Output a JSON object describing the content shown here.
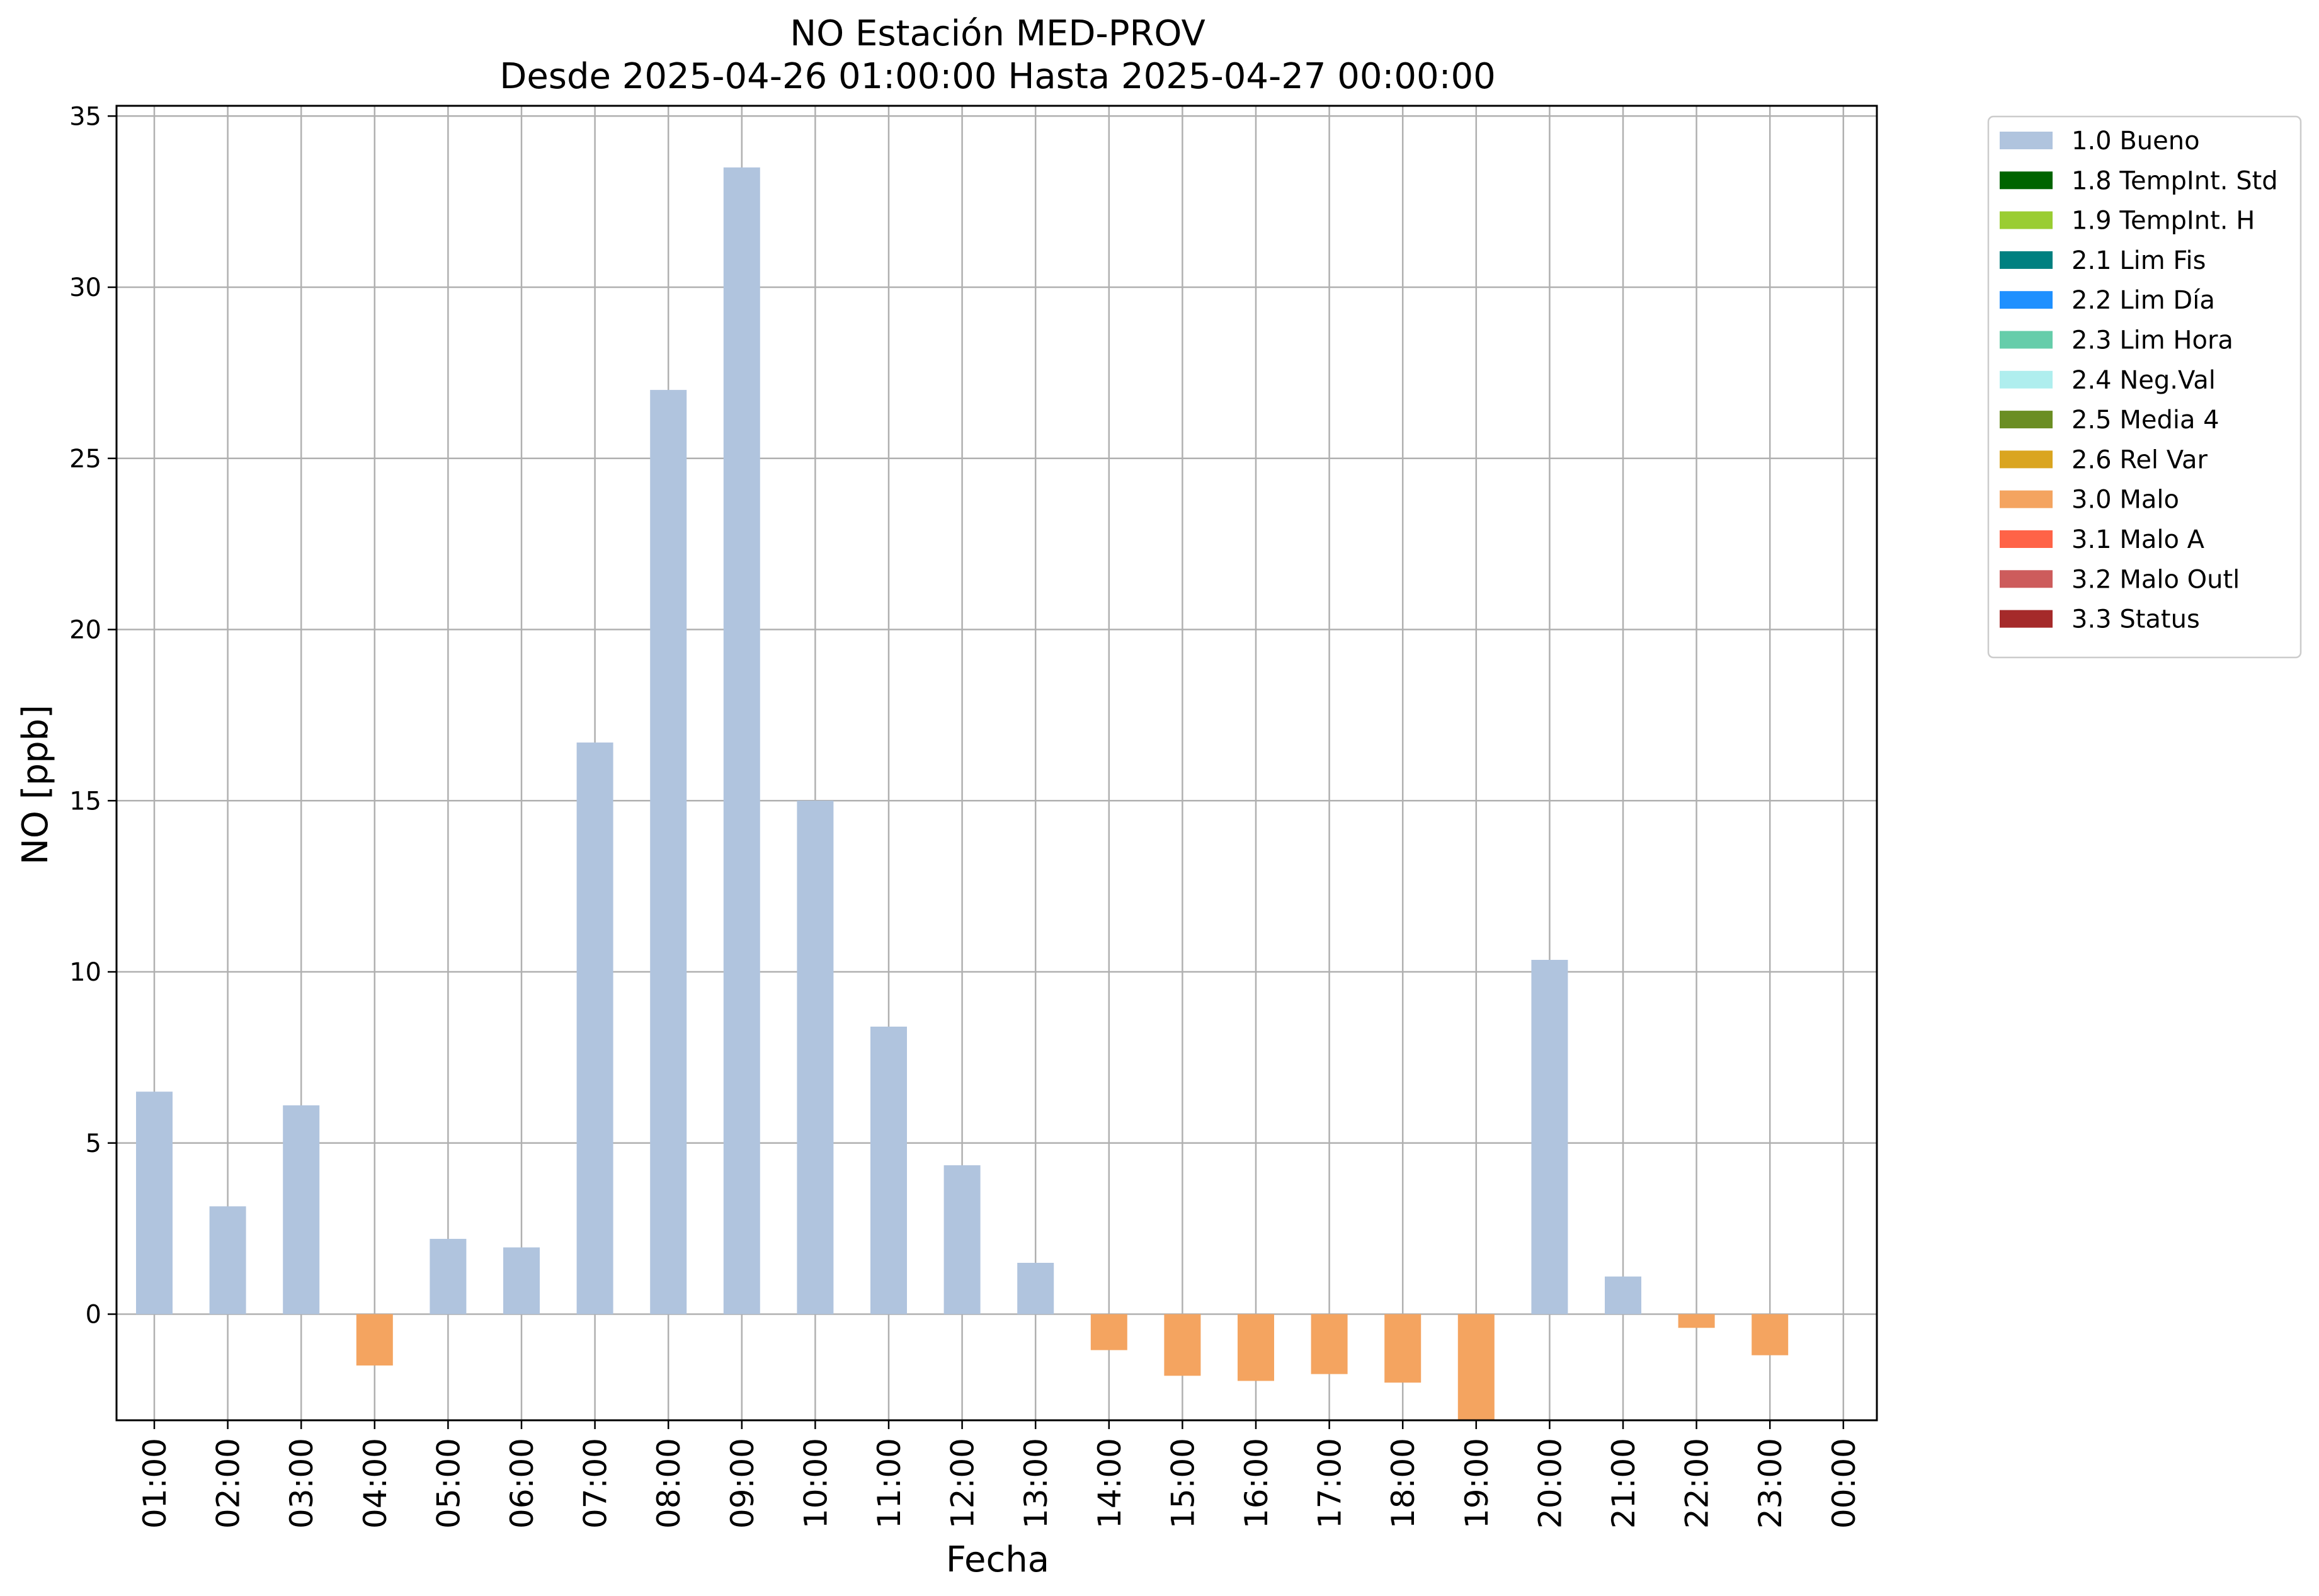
{
  "chart_data": {
    "type": "bar",
    "title": "NO Estación MED-PROV",
    "subtitle": "Desde 2025-04-26 01:00:00 Hasta 2025-04-27 00:00:00",
    "xlabel": "Fecha",
    "ylabel": "NO [ppb]",
    "ylim": [
      -3.1,
      35.3
    ],
    "yticks": [
      0,
      5,
      10,
      15,
      20,
      25,
      30,
      35
    ],
    "grid": true,
    "legend_position": "outside-top-right",
    "categories": [
      "01:00",
      "02:00",
      "03:00",
      "04:00",
      "05:00",
      "06:00",
      "07:00",
      "08:00",
      "09:00",
      "10:00",
      "11:00",
      "12:00",
      "13:00",
      "14:00",
      "15:00",
      "16:00",
      "17:00",
      "18:00",
      "19:00",
      "20:00",
      "21:00",
      "22:00",
      "23:00",
      "00:00"
    ],
    "values": [
      6.5,
      3.15,
      6.1,
      -1.5,
      2.2,
      1.95,
      16.7,
      27.0,
      33.5,
      15.0,
      8.4,
      4.35,
      1.5,
      -1.05,
      -1.8,
      -1.95,
      -1.75,
      -2.0,
      -3.1,
      10.35,
      1.1,
      -0.4,
      -1.2,
      null
    ],
    "flags": [
      "1.0 Bueno",
      "1.0 Bueno",
      "1.0 Bueno",
      "3.0 Malo",
      "1.0 Bueno",
      "1.0 Bueno",
      "1.0 Bueno",
      "1.0 Bueno",
      "1.0 Bueno",
      "1.0 Bueno",
      "1.0 Bueno",
      "1.0 Bueno",
      "1.0 Bueno",
      "3.0 Malo",
      "3.0 Malo",
      "3.0 Malo",
      "3.0 Malo",
      "3.0 Malo",
      "3.0 Malo",
      "1.0 Bueno",
      "1.0 Bueno",
      "3.0 Malo",
      "3.0 Malo",
      null
    ],
    "legend": [
      {
        "label": "1.0 Bueno",
        "color": "#b0c4de"
      },
      {
        "label": "1.8 TempInt. Std",
        "color": "#006400"
      },
      {
        "label": "1.9 TempInt. H",
        "color": "#9acd32"
      },
      {
        "label": "2.1 Lim Fis",
        "color": "#008080"
      },
      {
        "label": "2.2 Lim Día",
        "color": "#1e90ff"
      },
      {
        "label": "2.3 Lim Hora",
        "color": "#66cdaa"
      },
      {
        "label": "2.4 Neg.Val",
        "color": "#afeeee"
      },
      {
        "label": "2.5 Media 4",
        "color": "#6b8e23"
      },
      {
        "label": "2.6 Rel Var",
        "color": "#daa520"
      },
      {
        "label": "3.0 Malo",
        "color": "#f4a460"
      },
      {
        "label": "3.1 Malo A",
        "color": "#ff6347"
      },
      {
        "label": "3.2 Malo Outl",
        "color": "#cd5c5c"
      },
      {
        "label": "3.3 Status",
        "color": "#a52a2a"
      }
    ]
  }
}
